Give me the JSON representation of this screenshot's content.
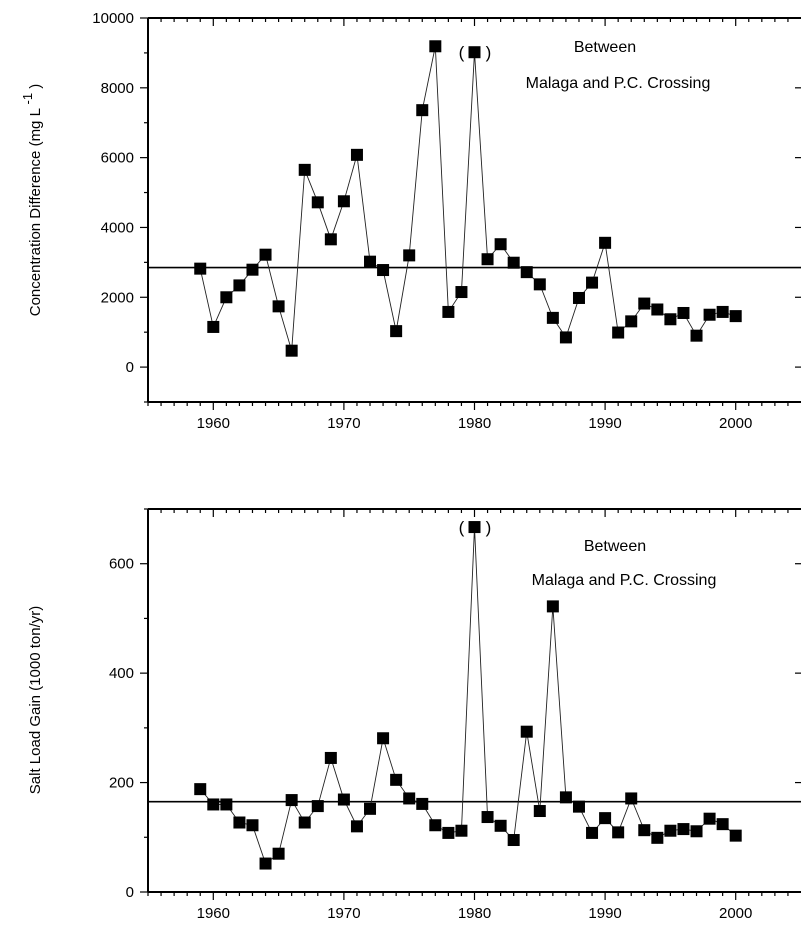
{
  "chart_data": [
    {
      "type": "line",
      "ylabel": "Concentration  Difference (mg L",
      "ylabel_sup": "-1",
      "ylabel_close": ")",
      "annotation_line1": "Between",
      "annotation_line2": "Malaga and P.C. Crossing",
      "xlim": [
        1955,
        2005
      ],
      "ylim": [
        -1000,
        10000
      ],
      "x_ticks": [
        1960,
        1970,
        1980,
        1990,
        2000
      ],
      "x_tick_labels": [
        "1960",
        "1970",
        "1980",
        "1990",
        "2000"
      ],
      "y_ticks": [
        0,
        2000,
        4000,
        6000,
        8000,
        10000
      ],
      "y_tick_labels": [
        "0",
        "2000",
        "4000",
        "6000",
        "8000",
        "10000"
      ],
      "mean_line": 2850,
      "parenthesized_point": {
        "x": 1980,
        "open": "(",
        "close": ")"
      },
      "marker": "square",
      "series": [
        {
          "x": [
            1959,
            1960,
            1961,
            1962,
            1963,
            1964,
            1965,
            1966,
            1967,
            1968,
            1969,
            1970,
            1971,
            1972,
            1973,
            1974,
            1975,
            1976,
            1977,
            1978,
            1979,
            1980,
            1981,
            1982,
            1983,
            1984,
            1985,
            1986,
            1987,
            1988,
            1989,
            1990,
            1991,
            1992,
            1993,
            1994,
            1995,
            1996,
            1997,
            1998,
            1999,
            2000
          ],
          "y": [
            2820,
            1150,
            2000,
            2340,
            2790,
            3220,
            1740,
            470,
            5650,
            4720,
            3660,
            4750,
            6080,
            3020,
            2780,
            1030,
            3200,
            7360,
            9190,
            1580,
            2150,
            9020,
            3090,
            3520,
            2990,
            2720,
            2370,
            1410,
            850,
            1980,
            2420,
            3560,
            990,
            1310,
            1820,
            1650,
            1370,
            1550,
            900,
            1500,
            1580,
            1460
          ]
        }
      ]
    },
    {
      "type": "line",
      "ylabel": "Salt Load Gain (1000 ton/yr)",
      "annotation_line1": "Between",
      "annotation_line2": "Malaga and P.C. Crossing",
      "xlim": [
        1955,
        2005
      ],
      "ylim": [
        0,
        700
      ],
      "x_ticks": [
        1960,
        1970,
        1980,
        1990,
        2000
      ],
      "x_tick_labels": [
        "1960",
        "1970",
        "1980",
        "1990",
        "2000"
      ],
      "y_ticks": [
        0,
        200,
        400,
        600
      ],
      "y_tick_labels": [
        "0",
        "200",
        "400",
        "600"
      ],
      "mean_line": 165,
      "parenthesized_point": {
        "x": 1980,
        "open": "(",
        "close": ")"
      },
      "marker": "square",
      "series": [
        {
          "x": [
            1959,
            1960,
            1961,
            1962,
            1963,
            1964,
            1965,
            1966,
            1967,
            1968,
            1969,
            1970,
            1971,
            1972,
            1973,
            1974,
            1975,
            1976,
            1977,
            1978,
            1979,
            1980,
            1981,
            1982,
            1983,
            1984,
            1985,
            1986,
            1987,
            1988,
            1989,
            1990,
            1991,
            1992,
            1993,
            1994,
            1995,
            1996,
            1997,
            1998,
            1999,
            2000
          ],
          "y": [
            188,
            160,
            160,
            127,
            122,
            52,
            70,
            168,
            127,
            157,
            245,
            169,
            120,
            152,
            281,
            205,
            171,
            161,
            122,
            108,
            112,
            667,
            137,
            121,
            95,
            293,
            148,
            522,
            173,
            156,
            108,
            135,
            109,
            171,
            113,
            99,
            112,
            115,
            111,
            134,
            124,
            103
          ]
        }
      ]
    }
  ]
}
